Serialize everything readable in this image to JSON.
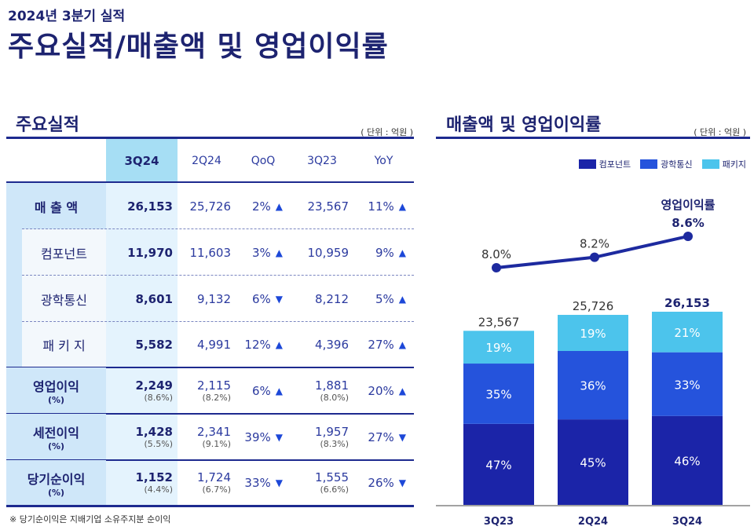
{
  "header": {
    "subtitle": "2024년 3분기 실적",
    "title": "주요실적/매출액 및 영업이익률"
  },
  "table": {
    "section_title": "주요실적",
    "unit": "( 단위 : 억원 )",
    "columns": [
      "3Q24",
      "2Q24",
      "QoQ",
      "3Q23",
      "YoY"
    ],
    "rows": [
      {
        "label": "매 출 액",
        "bold": true,
        "sub": false,
        "v3q24": "26,153",
        "v2q24": "25,726",
        "qoq": "2%",
        "qoq_dir": "up",
        "v3q23": "23,567",
        "yoy": "11%",
        "yoy_dir": "up"
      },
      {
        "label": "컴포넌트",
        "bold": false,
        "sub": true,
        "v3q24": "11,970",
        "v2q24": "11,603",
        "qoq": "3%",
        "qoq_dir": "up",
        "v3q23": "10,959",
        "yoy": "9%",
        "yoy_dir": "up"
      },
      {
        "label": "광학통신",
        "bold": false,
        "sub": true,
        "v3q24": "8,601",
        "v2q24": "9,132",
        "qoq": "6%",
        "qoq_dir": "down",
        "v3q23": "8,212",
        "yoy": "5%",
        "yoy_dir": "up"
      },
      {
        "label": "패 키 지",
        "bold": false,
        "sub": true,
        "v3q24": "5,582",
        "v2q24": "4,991",
        "qoq": "12%",
        "qoq_dir": "up",
        "v3q23": "4,396",
        "yoy": "27%",
        "yoy_dir": "up"
      },
      {
        "label": "영업이익",
        "pct_label": "(%)",
        "bold": true,
        "sub": false,
        "v3q24": "2,249",
        "p3q24": "(8.6%)",
        "v2q24": "2,115",
        "p2q24": "(8.2%)",
        "qoq": "6%",
        "qoq_dir": "up",
        "v3q23": "1,881",
        "p3q23": "(8.0%)",
        "yoy": "20%",
        "yoy_dir": "up"
      },
      {
        "label": "세전이익",
        "pct_label": "(%)",
        "bold": true,
        "sub": false,
        "v3q24": "1,428",
        "p3q24": "(5.5%)",
        "v2q24": "2,341",
        "p2q24": "(9.1%)",
        "qoq": "39%",
        "qoq_dir": "down",
        "v3q23": "1,957",
        "p3q23": "(8.3%)",
        "yoy": "27%",
        "yoy_dir": "down"
      },
      {
        "label": "당기순이익",
        "pct_label": "(%)",
        "bold": true,
        "sub": false,
        "v3q24": "1,152",
        "p3q24": "(4.4%)",
        "v2q24": "1,724",
        "p2q24": "(6.7%)",
        "qoq": "33%",
        "qoq_dir": "down",
        "v3q23": "1,555",
        "p3q23": "(6.6%)",
        "yoy": "26%",
        "yoy_dir": "down"
      }
    ],
    "footnote": "※ 당기순이익은 지배기업 소유주지분 순이익"
  },
  "chart_data": {
    "type": "bar",
    "title": "매출액 및 영업이익률",
    "unit": "( 단위 : 억원 )",
    "categories": [
      "3Q23",
      "2Q24",
      "3Q24"
    ],
    "totals": [
      23567,
      25726,
      26153
    ],
    "total_labels": [
      "23,567",
      "25,726",
      "26,153"
    ],
    "series": [
      {
        "name": "컴포넌트",
        "color": "#1b24a8",
        "shares": [
          47,
          45,
          46
        ],
        "labels": [
          "47%",
          "45%",
          "46%"
        ]
      },
      {
        "name": "광학통신",
        "color": "#2553dc",
        "shares": [
          35,
          36,
          33
        ],
        "labels": [
          "35%",
          "36%",
          "33%"
        ]
      },
      {
        "name": "패키지",
        "color": "#4cc4ec",
        "shares": [
          19,
          19,
          21
        ],
        "labels": [
          "19%",
          "19%",
          "21%"
        ]
      }
    ],
    "line": {
      "name": "영업이익률",
      "values": [
        8.0,
        8.2,
        8.6
      ],
      "labels": [
        "8.0%",
        "8.2%",
        "8.6%"
      ],
      "color": "#1d2a9f"
    }
  }
}
